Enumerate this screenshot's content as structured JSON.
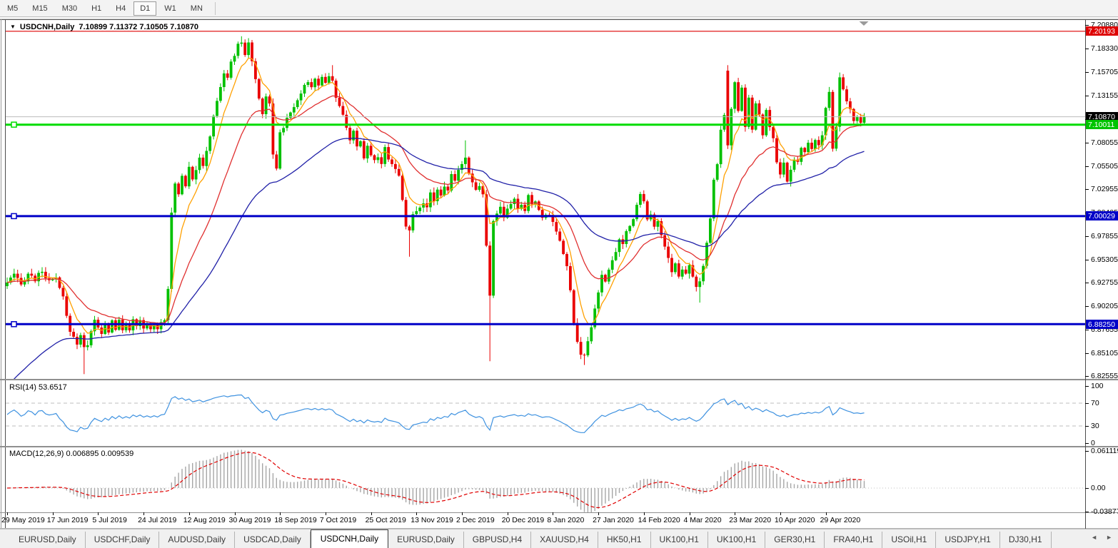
{
  "toolbar": {
    "timeframes": [
      "M5",
      "M15",
      "M30",
      "H1",
      "H4",
      "D1",
      "W1",
      "MN"
    ],
    "active": "D1"
  },
  "chart": {
    "dropdown_icon": "▼",
    "title_symbol": "USDCNH,Daily",
    "title_ohlc": "7.10899 7.11372 7.10505 7.10870"
  },
  "price_axis": {
    "ticks": [
      "7.20880",
      "7.18330",
      "7.15705",
      "7.13155",
      "7.10605",
      "7.08055",
      "7.05505",
      "7.02955",
      "7.00405",
      "6.97855",
      "6.95305",
      "6.92755",
      "6.90205",
      "6.87655",
      "6.85105",
      "6.82555"
    ]
  },
  "lines": [
    {
      "name": "resistance-line-red",
      "label": "7.20193",
      "price": 7.20193,
      "color": "#DE0000",
      "width": 1.2,
      "handle": false,
      "box_bg": "#DE0000",
      "box_fg": "#ffffff"
    },
    {
      "name": "current-price-line",
      "label": "7.10870",
      "price": 7.1087,
      "color": "#BBBBBB",
      "width": 1,
      "handle": false,
      "box_bg": "#000000",
      "box_fg": "#ffffff"
    },
    {
      "name": "support-line-green",
      "label": "7.10011",
      "price": 7.10011,
      "color": "#00DC00",
      "width": 3,
      "handle": true,
      "box_bg": "#00C400",
      "box_fg": "#ffffff"
    },
    {
      "name": "pivot-line-blue",
      "label": "7.00029",
      "price": 7.00029,
      "color": "#0000C8",
      "width": 3,
      "handle": true,
      "box_bg": "#0000C8",
      "box_fg": "#ffffff"
    },
    {
      "name": "support-line-blue",
      "label": "6.88250",
      "price": 6.8825,
      "color": "#0000C8",
      "width": 3,
      "handle": true,
      "box_bg": "#0000C8",
      "box_fg": "#ffffff"
    }
  ],
  "rsi": {
    "label": "RSI(14) 53.6517",
    "ticks": [
      {
        "label": "100",
        "v": 100
      },
      {
        "label": "70",
        "v": 70
      },
      {
        "label": "30",
        "v": 30
      },
      {
        "label": "0",
        "v": 0
      }
    ],
    "levels": [
      70,
      30
    ],
    "line_color": "#3F92E0"
  },
  "macd": {
    "label": "MACD(12,26,9) 0.006895 0.009539",
    "ticks": [
      {
        "label": "0.061119",
        "v": 0.061119
      },
      {
        "label": "0.00",
        "v": 0
      },
      {
        "label": "-0.038777",
        "v": -0.038777
      }
    ],
    "hist_color": "#A6A6A6",
    "signal_color": "#E00000"
  },
  "date_axis": {
    "labels": [
      "29 May 2019",
      "17 Jun 2019",
      "5 Jul 2019",
      "24 Jul 2019",
      "12 Aug 2019",
      "30 Aug 2019",
      "18 Sep 2019",
      "7 Oct 2019",
      "25 Oct 2019",
      "13 Nov 2019",
      "2 Dec 2019",
      "20 Dec 2019",
      "8 Jan 2020",
      "27 Jan 2020",
      "14 Feb 2020",
      "4 Mar 2020",
      "23 Mar 2020",
      "10 Apr 2020",
      "29 Apr 2020"
    ]
  },
  "tabs": {
    "items": [
      "EURUSD,Daily",
      "USDCHF,Daily",
      "AUDUSD,Daily",
      "USDCAD,Daily",
      "USDCNH,Daily",
      "EURUSD,Daily",
      "GBPUSD,H4",
      "XAUUSD,H4",
      "HK50,H1",
      "UK100,H1",
      "UK100,H1",
      "GER30,H1",
      "FRA40,H1",
      "USOil,H1",
      "USDJPY,H1",
      "DJ30,H1"
    ],
    "active_index": 4,
    "nav_left": "◄",
    "nav_right": "►"
  },
  "chart_data": {
    "type": "candlestick",
    "symbol": "USDCNH",
    "timeframe": "Daily",
    "bars": 246,
    "up_color": "#00C000",
    "down_color": "#EA0000",
    "price_range": {
      "top": 7.2088,
      "bottom": 6.82555
    },
    "ma": [
      {
        "name": "ma-fast-orange",
        "color": "#FFA000",
        "period": 7
      },
      {
        "name": "ma-mid-red",
        "color": "#E03030",
        "period": 22
      },
      {
        "name": "ma-slow-blue",
        "color": "#2121A8",
        "period": 55,
        "seed": 6.81
      }
    ],
    "anchors": [
      [
        0,
        6.928
      ],
      [
        2,
        6.936
      ],
      [
        4,
        6.925
      ],
      [
        6,
        6.938
      ],
      [
        8,
        6.931
      ],
      [
        10,
        6.941
      ],
      [
        12,
        6.928
      ],
      [
        14,
        6.933
      ],
      [
        15,
        6.92
      ],
      [
        16,
        6.912
      ],
      [
        17,
        6.89
      ],
      [
        18,
        6.876
      ],
      [
        19,
        6.868
      ],
      [
        20,
        6.862
      ],
      [
        21,
        6.871
      ],
      [
        22,
        6.856
      ],
      [
        23,
        6.861
      ],
      [
        24,
        6.876
      ],
      [
        25,
        6.886
      ],
      [
        26,
        6.878
      ],
      [
        27,
        6.871
      ],
      [
        28,
        6.882
      ],
      [
        29,
        6.875
      ],
      [
        30,
        6.886
      ],
      [
        31,
        6.878
      ],
      [
        32,
        6.885
      ],
      [
        33,
        6.876
      ],
      [
        34,
        6.884
      ],
      [
        35,
        6.877
      ],
      [
        36,
        6.886
      ],
      [
        37,
        6.879
      ],
      [
        38,
        6.885
      ],
      [
        39,
        6.877
      ],
      [
        40,
        6.883
      ],
      [
        41,
        6.876
      ],
      [
        42,
        6.884
      ],
      [
        43,
        6.878
      ],
      [
        44,
        6.885
      ],
      [
        45,
        6.889
      ],
      [
        46,
        6.923
      ],
      [
        47,
        7.002
      ],
      [
        48,
        7.036
      ],
      [
        49,
        7.024
      ],
      [
        50,
        7.046
      ],
      [
        51,
        7.034
      ],
      [
        52,
        7.056
      ],
      [
        53,
        7.042
      ],
      [
        54,
        7.052
      ],
      [
        55,
        7.062
      ],
      [
        56,
        7.054
      ],
      [
        57,
        7.072
      ],
      [
        58,
        7.088
      ],
      [
        59,
        7.108
      ],
      [
        60,
        7.126
      ],
      [
        61,
        7.142
      ],
      [
        62,
        7.156
      ],
      [
        63,
        7.149
      ],
      [
        64,
        7.171
      ],
      [
        65,
        7.176
      ],
      [
        66,
        7.186
      ],
      [
        67,
        7.191
      ],
      [
        68,
        7.176
      ],
      [
        69,
        7.19
      ],
      [
        70,
        7.168
      ],
      [
        71,
        7.15
      ],
      [
        72,
        7.128
      ],
      [
        73,
        7.114
      ],
      [
        74,
        7.131
      ],
      [
        75,
        7.124
      ],
      [
        76,
        7.068
      ],
      [
        77,
        7.054
      ],
      [
        78,
        7.091
      ],
      [
        79,
        7.098
      ],
      [
        80,
        7.106
      ],
      [
        81,
        7.113
      ],
      [
        82,
        7.121
      ],
      [
        83,
        7.128
      ],
      [
        84,
        7.136
      ],
      [
        85,
        7.141
      ],
      [
        86,
        7.148
      ],
      [
        87,
        7.139
      ],
      [
        88,
        7.151
      ],
      [
        89,
        7.144
      ],
      [
        90,
        7.151
      ],
      [
        91,
        7.147
      ],
      [
        92,
        7.154
      ],
      [
        93,
        7.149
      ],
      [
        94,
        7.129
      ],
      [
        95,
        7.119
      ],
      [
        96,
        7.109
      ],
      [
        97,
        7.099
      ],
      [
        98,
        7.084
      ],
      [
        99,
        7.091
      ],
      [
        100,
        7.074
      ],
      [
        101,
        7.081
      ],
      [
        102,
        7.064
      ],
      [
        103,
        7.076
      ],
      [
        104,
        7.069
      ],
      [
        105,
        7.061
      ],
      [
        106,
        7.066
      ],
      [
        107,
        7.058
      ],
      [
        108,
        7.074
      ],
      [
        109,
        7.064
      ],
      [
        110,
        7.059
      ],
      [
        111,
        7.051
      ],
      [
        112,
        7.044
      ],
      [
        113,
        7.019
      ],
      [
        114,
        6.991
      ],
      [
        115,
        6.984
      ],
      [
        116,
        7.001
      ],
      [
        117,
        7.006
      ],
      [
        118,
        7.012
      ],
      [
        119,
        7.016
      ],
      [
        120,
        7.011
      ],
      [
        121,
        7.024
      ],
      [
        122,
        7.019
      ],
      [
        123,
        7.029
      ],
      [
        124,
        7.024
      ],
      [
        125,
        7.034
      ],
      [
        126,
        7.029
      ],
      [
        127,
        7.044
      ],
      [
        128,
        7.038
      ],
      [
        129,
        7.049
      ],
      [
        130,
        7.059
      ],
      [
        131,
        7.064
      ],
      [
        132,
        7.049
      ],
      [
        133,
        7.039
      ],
      [
        134,
        7.029
      ],
      [
        135,
        7.034
      ],
      [
        136,
        7.024
      ],
      [
        137,
        6.968
      ],
      [
        138,
        6.912
      ],
      [
        139,
        6.996
      ],
      [
        140,
        7.004
      ],
      [
        141,
        7.009
      ],
      [
        142,
        6.999
      ],
      [
        143,
        7.006
      ],
      [
        144,
        7.013
      ],
      [
        145,
        7.019
      ],
      [
        146,
        7.009
      ],
      [
        147,
        7.012
      ],
      [
        148,
        7.004
      ],
      [
        149,
        7.024
      ],
      [
        150,
        7.014
      ],
      [
        151,
        7.016
      ],
      [
        152,
        7.006
      ],
      [
        153,
        6.999
      ],
      [
        154,
        7.004
      ],
      [
        155,
        7.001
      ],
      [
        156,
        6.994
      ],
      [
        157,
        6.986
      ],
      [
        158,
        6.974
      ],
      [
        159,
        6.961
      ],
      [
        160,
        6.944
      ],
      [
        161,
        6.919
      ],
      [
        162,
        6.884
      ],
      [
        163,
        6.861
      ],
      [
        164,
        6.849
      ],
      [
        165,
        6.847
      ],
      [
        166,
        6.864
      ],
      [
        167,
        6.879
      ],
      [
        168,
        6.899
      ],
      [
        169,
        6.919
      ],
      [
        170,
        6.934
      ],
      [
        171,
        6.929
      ],
      [
        172,
        6.944
      ],
      [
        173,
        6.954
      ],
      [
        174,
        6.959
      ],
      [
        175,
        6.974
      ],
      [
        176,
        6.969
      ],
      [
        177,
        6.984
      ],
      [
        178,
        6.989
      ],
      [
        179,
        6.999
      ],
      [
        180,
        7.014
      ],
      [
        181,
        7.024
      ],
      [
        182,
        7.017
      ],
      [
        183,
        6.999
      ],
      [
        184,
        7.004
      ],
      [
        185,
        6.989
      ],
      [
        186,
        6.994
      ],
      [
        187,
        6.979
      ],
      [
        188,
        6.969
      ],
      [
        189,
        6.954
      ],
      [
        190,
        6.939
      ],
      [
        191,
        6.949
      ],
      [
        192,
        6.934
      ],
      [
        193,
        6.944
      ],
      [
        194,
        6.939
      ],
      [
        195,
        6.949
      ],
      [
        196,
        6.934
      ],
      [
        197,
        6.924
      ],
      [
        198,
        6.929
      ],
      [
        199,
        6.944
      ],
      [
        200,
        6.969
      ],
      [
        201,
        6.999
      ],
      [
        202,
        7.039
      ],
      [
        203,
        7.059
      ],
      [
        204,
        7.094
      ],
      [
        205,
        7.109
      ],
      [
        206,
        7.079
      ],
      [
        207,
        7.119
      ],
      [
        208,
        7.144
      ],
      [
        209,
        7.114
      ],
      [
        210,
        7.139
      ],
      [
        211,
        7.099
      ],
      [
        212,
        7.129
      ],
      [
        213,
        7.094
      ],
      [
        214,
        7.124
      ],
      [
        215,
        7.109
      ],
      [
        216,
        7.089
      ],
      [
        217,
        7.114
      ],
      [
        218,
        7.099
      ],
      [
        219,
        7.084
      ],
      [
        220,
        7.059
      ],
      [
        221,
        7.044
      ],
      [
        222,
        7.057
      ],
      [
        223,
        7.039
      ],
      [
        224,
        7.049
      ],
      [
        225,
        7.064
      ],
      [
        226,
        7.059
      ],
      [
        227,
        7.074
      ],
      [
        228,
        7.069
      ],
      [
        229,
        7.079
      ],
      [
        230,
        7.074
      ],
      [
        231,
        7.084
      ],
      [
        232,
        7.079
      ],
      [
        233,
        7.089
      ],
      [
        234,
        7.119
      ],
      [
        235,
        7.134
      ],
      [
        236,
        7.072
      ],
      [
        237,
        7.096
      ],
      [
        238,
        7.151
      ],
      [
        239,
        7.139
      ],
      [
        240,
        7.124
      ],
      [
        241,
        7.117
      ],
      [
        242,
        7.104
      ],
      [
        243,
        7.108
      ],
      [
        244,
        7.101
      ],
      [
        245,
        7.1087
      ]
    ],
    "specials": {
      "22": {
        "l": 6.828
      },
      "67": {
        "h": 7.1965
      },
      "93": {
        "h": 7.165
      },
      "115": {
        "l": 6.956
      },
      "131": {
        "h": 7.083
      },
      "138": {
        "l": 6.842
      },
      "165": {
        "l": 6.838
      },
      "198": {
        "l": 6.906
      },
      "206": {
        "o": 7.159,
        "h": 7.165
      },
      "238": {
        "h": 7.157
      }
    }
  }
}
